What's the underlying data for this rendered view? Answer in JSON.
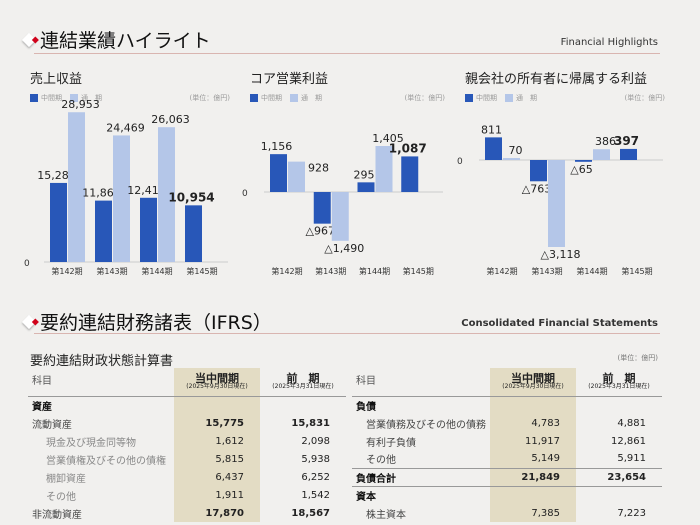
{
  "highlights": {
    "title": "連結業績ハイライト",
    "title_en": "Financial Highlights"
  },
  "legend": {
    "interim": "中間期",
    "full": "通　期",
    "unit": "(単位：億円)"
  },
  "colors": {
    "interim": "#2857b8",
    "full": "#b4c6e8",
    "accent": "#d0021b"
  },
  "chart_data": [
    {
      "type": "bar",
      "title": "売上収益",
      "categories": [
        "第142期",
        "第143期",
        "第144期",
        "第145期"
      ],
      "series": [
        {
          "name": "中間期",
          "values": [
            15286,
            11869,
            12414,
            10954
          ],
          "labels": [
            "15,286",
            "11,869",
            "12,414",
            "10,954"
          ]
        },
        {
          "name": "通期",
          "values": [
            28953,
            24469,
            26063,
            null
          ],
          "labels": [
            "28,953",
            "24,469",
            "26,063",
            ""
          ]
        }
      ],
      "zero_label": "0",
      "ylim": [
        0,
        29000
      ]
    },
    {
      "type": "bar",
      "title": "コア営業利益",
      "categories": [
        "第142期",
        "第143期",
        "第144期",
        "第145期"
      ],
      "series": [
        {
          "name": "中間期",
          "values": [
            1156,
            -967,
            295,
            1087
          ],
          "labels": [
            "1,156",
            "△967",
            "295",
            "1,087"
          ]
        },
        {
          "name": "通期",
          "values": [
            928,
            -1490,
            1405,
            null
          ],
          "labels": [
            "928",
            "△1,490",
            "1,405",
            ""
          ]
        }
      ],
      "zero_label": "0",
      "ylim": [
        -1490,
        1405
      ]
    },
    {
      "type": "bar",
      "title": "親会社の所有者に帰属する利益",
      "categories": [
        "第142期",
        "第143期",
        "第144期",
        "第145期"
      ],
      "series": [
        {
          "name": "中間期",
          "values": [
            811,
            -763,
            -65,
            397
          ],
          "labels": [
            "811",
            "△763",
            "△65",
            "397"
          ]
        },
        {
          "name": "通期",
          "values": [
            70,
            -3118,
            386,
            null
          ],
          "labels": [
            "70",
            "△3,118",
            "386",
            ""
          ]
        }
      ],
      "zero_label": "0",
      "ylim": [
        -3118,
        811
      ]
    }
  ],
  "statements": {
    "title": "要約連結財務諸表（IFRS）",
    "title_en": "Consolidated Financial Statements",
    "bs_title": "要約連結財政状態計算書",
    "unit": "(単位：億円)",
    "col_item": "科目",
    "col_cur": "当中間期",
    "col_cur_date": "(2025年9月30日現在)",
    "col_prev": "前　期",
    "col_prev_date": "(2025年3月31日現在)",
    "left": [
      {
        "label": "資産",
        "cur": "",
        "prev": "",
        "type": "head"
      },
      {
        "label": "流動資産",
        "cur": "15,775",
        "prev": "15,831",
        "type": "main"
      },
      {
        "label": "現金及び現金同等物",
        "cur": "1,612",
        "prev": "2,098",
        "type": "sub"
      },
      {
        "label": "営業債権及びその他の債権",
        "cur": "5,815",
        "prev": "5,938",
        "type": "sub"
      },
      {
        "label": "棚卸資産",
        "cur": "6,437",
        "prev": "6,252",
        "type": "sub"
      },
      {
        "label": "その他",
        "cur": "1,911",
        "prev": "1,542",
        "type": "sub"
      },
      {
        "label": "非流動資産",
        "cur": "17,870",
        "prev": "18,567",
        "type": "main"
      }
    ],
    "right": [
      {
        "label": "負債",
        "cur": "",
        "prev": "",
        "type": "head"
      },
      {
        "label": "営業債務及びその他の債務",
        "cur": "4,783",
        "prev": "4,881",
        "type": "sub2"
      },
      {
        "label": "有利子負債",
        "cur": "11,917",
        "prev": "12,861",
        "type": "sub2"
      },
      {
        "label": "その他",
        "cur": "5,149",
        "prev": "5,911",
        "type": "sub2"
      },
      {
        "label": "負債合計",
        "cur": "21,849",
        "prev": "23,654",
        "type": "total"
      },
      {
        "label": "資本",
        "cur": "",
        "prev": "",
        "type": "head"
      },
      {
        "label": "株主資本",
        "cur": "7,385",
        "prev": "7,223",
        "type": "sub2"
      }
    ]
  }
}
